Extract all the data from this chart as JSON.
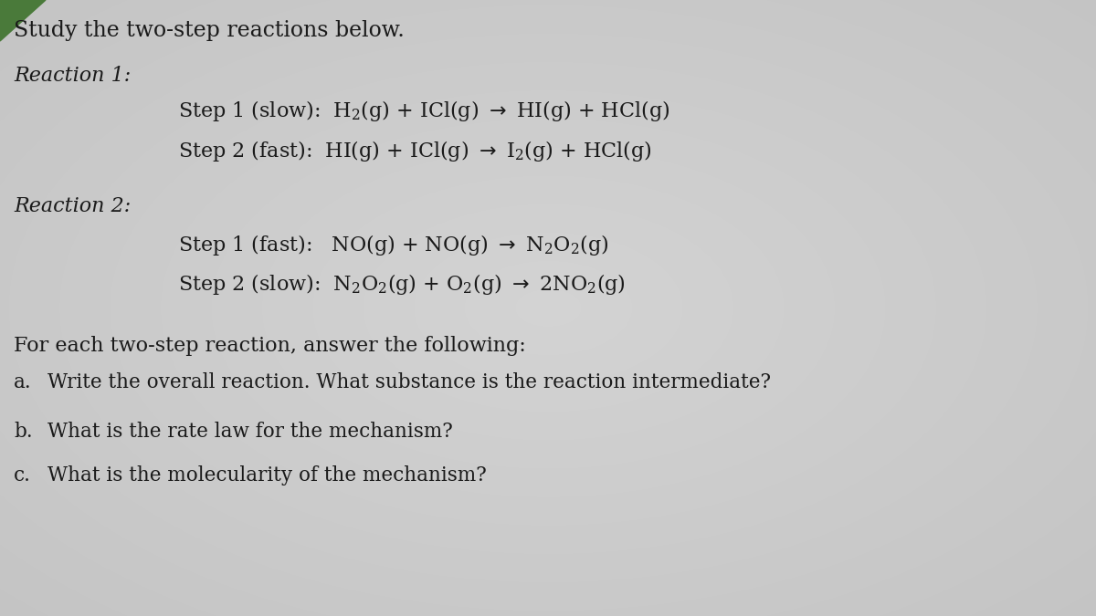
{
  "background_color": "#c8c8c8",
  "text_color": "#1a1a1a",
  "title": "Study the two-step reactions below.",
  "reaction1_label": "Reaction 1:",
  "reaction2_label": "Reaction 2:",
  "footer": "For each two-step reaction, answer the following:",
  "qa": "Write the overall reaction. What substance is the reaction intermediate?",
  "qb": "What is the rate law for the mechanism?",
  "qc": "What is the molecularity of the mechanism?",
  "label_a": "a.",
  "label_b": "b.",
  "label_c": "c.",
  "green_corner_color": "#4a7a3a"
}
